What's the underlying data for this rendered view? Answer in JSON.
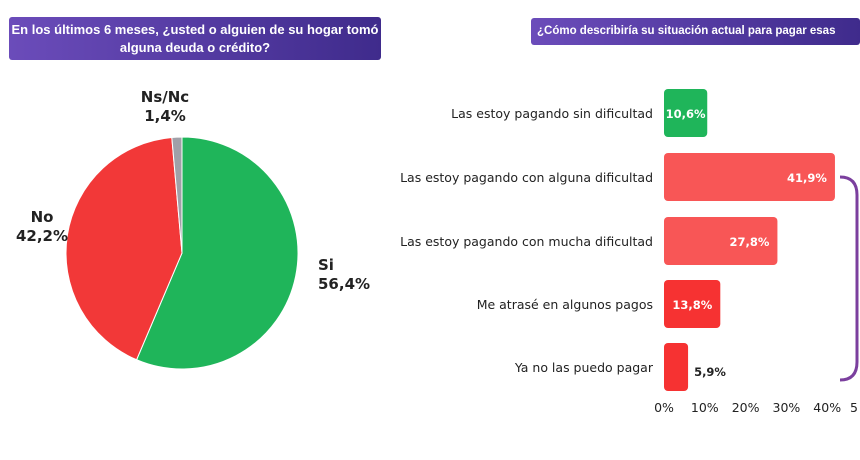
{
  "chart_data": [
    {
      "type": "pie",
      "title": "En los últimos 6 meses, ¿usted o alguien de su hogar tomó alguna deuda o crédito?",
      "slices": [
        {
          "label": "Si",
          "value": 56.4,
          "display": "56,4%",
          "color": "#1fb55a"
        },
        {
          "label": "No",
          "value": 42.2,
          "display": "42,2%",
          "color": "#f23838"
        },
        {
          "label": "Ns/Nc",
          "value": 1.4,
          "display": "1,4%",
          "color": "#a0a0a8"
        }
      ]
    },
    {
      "type": "bar",
      "orientation": "horizontal",
      "title": "¿Cómo describiría su situación actual para pagar esas",
      "categories": [
        "Las estoy pagando sin dificultad",
        "Las estoy pagando con alguna dificultad",
        "Las estoy pagando con mucha dificultad",
        "Me atrasé en algunos pagos",
        "Ya no las puedo pagar"
      ],
      "values": [
        10.6,
        41.9,
        27.8,
        13.8,
        5.9
      ],
      "labels": [
        "10,6%",
        "41,9%",
        "27,8%",
        "13,8%",
        "5,9%"
      ],
      "colors": [
        "#1fb55a",
        "#f85656",
        "#f85656",
        "#f63232",
        "#f63232"
      ],
      "xlim": [
        0,
        50
      ],
      "xticks": [
        "0%",
        "10%",
        "20%",
        "30%",
        "40%",
        "5"
      ],
      "bracket_color": "#7b3f9e"
    }
  ]
}
